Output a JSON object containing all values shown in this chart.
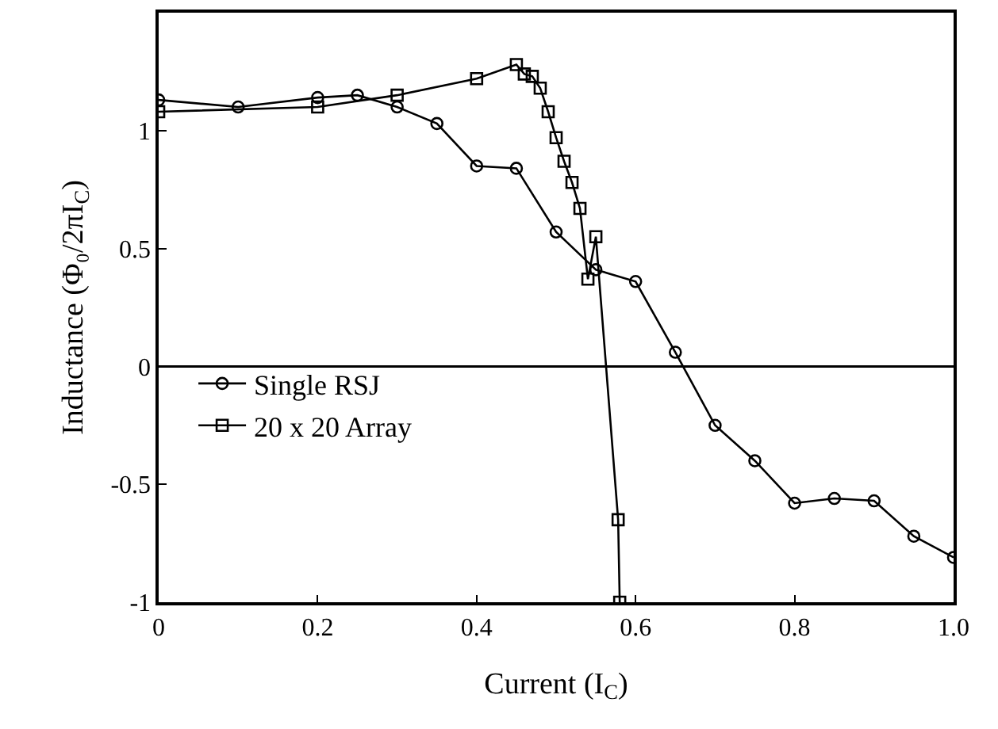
{
  "chart_data": {
    "type": "line",
    "xlabel": "Current (I$_{C}$)",
    "ylabel": "Inductance (Φ₀/2πI$_{C}$)",
    "xlim": [
      0,
      1
    ],
    "xticks": [
      0,
      0.2,
      0.4,
      0.6,
      0.8,
      {
        "value": 1,
        "label": "1.0"
      }
    ],
    "ylim": [
      -1,
      1.5
    ],
    "yticks": [
      -1,
      -0.5,
      0,
      0.5,
      1
    ],
    "grid": false,
    "legend": "left",
    "line_style": "solid",
    "ref_lines": [
      {
        "axis": "y",
        "value": 0,
        "color": "#000000"
      }
    ],
    "series": [
      {
        "name": "Single RSJ",
        "color": "#000000",
        "marker": "circle",
        "x": [
          0,
          0.1,
          0.2,
          0.25,
          0.3,
          0.35,
          0.4,
          0.45,
          0.5,
          0.55,
          0.6,
          0.65,
          0.7,
          0.75,
          0.8,
          0.85,
          0.9,
          0.95,
          1
        ],
        "values": [
          1.13,
          1.1,
          1.14,
          1.15,
          1.1,
          1.03,
          0.85,
          0.84,
          0.57,
          0.41,
          0.36,
          0.06,
          -0.25,
          -0.4,
          -0.58,
          -0.56,
          -0.57,
          -0.72,
          -0.81
        ]
      },
      {
        "name": "20 x 20 Array",
        "color": "#000000",
        "marker": "square",
        "x": [
          0,
          0.2,
          0.3,
          0.4,
          0.45,
          0.46,
          0.47,
          0.48,
          0.49,
          0.5,
          0.51,
          0.52,
          0.53,
          0.54,
          0.55,
          0.578,
          0.58
        ],
        "values": [
          1.08,
          1.1,
          1.15,
          1.22,
          1.28,
          1.24,
          1.23,
          1.18,
          1.08,
          0.97,
          0.87,
          0.78,
          0.67,
          0.37,
          0.55,
          -0.65,
          -1
        ]
      }
    ]
  }
}
